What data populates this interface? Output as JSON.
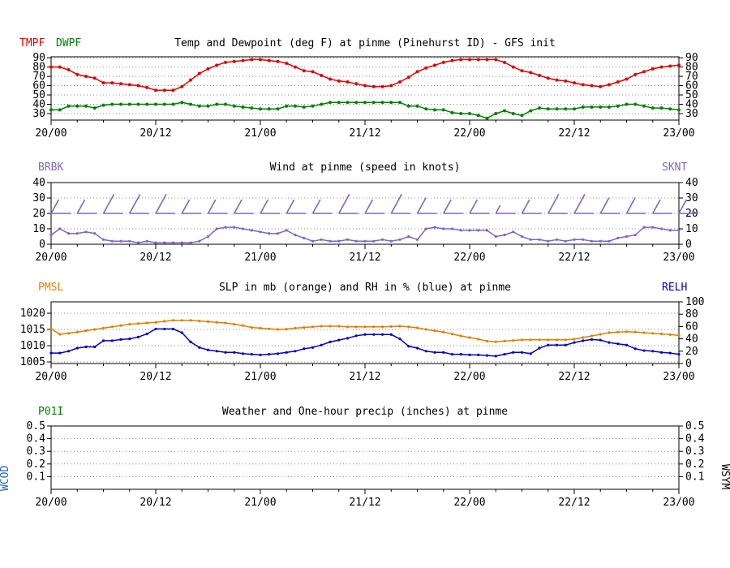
{
  "panels": {
    "temp": {
      "title": "Temp and Dewpoint (deg F) at pinme (Pinehurst ID) - GFS init",
      "left_labels": [
        {
          "text": "TMPF",
          "color": "#e00000"
        },
        {
          "text": "DWPF",
          "color": "#008000"
        }
      ],
      "right_label": "",
      "left_ticks": [
        "90",
        "80",
        "70",
        "60",
        "50",
        "40",
        "30"
      ],
      "right_ticks": [
        "90",
        "80",
        "70",
        "60",
        "50",
        "40",
        "30"
      ],
      "x_ticks": [
        "20/00",
        "20/12",
        "21/00",
        "21/12",
        "22/00",
        "22/12",
        "23/00"
      ]
    },
    "wind": {
      "title": "Wind at  pinme (speed in knots)",
      "left_label": {
        "text": "BRBK",
        "color": "#8064c8"
      },
      "right_label": {
        "text": "SKNT",
        "color": "#8064c8"
      },
      "left_ticks": [
        "40",
        "30",
        "20",
        "10",
        "0"
      ],
      "right_ticks": [
        "40",
        "30",
        "20",
        "10",
        "0"
      ],
      "x_ticks": [
        "20/00",
        "20/12",
        "21/00",
        "21/12",
        "22/00",
        "22/12",
        "23/00"
      ]
    },
    "slp": {
      "title": "SLP in mb (orange) and RH in % (blue) at  pinme",
      "left_label": {
        "text": "PMSL",
        "color": "#e08000"
      },
      "right_label": {
        "text": "RELH",
        "color": "#0000c8"
      },
      "left_ticks": [
        "1020",
        "1015",
        "1010",
        "1005"
      ],
      "right_ticks": [
        "100",
        "80",
        "60",
        "40",
        "20",
        "0"
      ],
      "x_ticks": [
        "20/00",
        "20/12",
        "21/00",
        "21/12",
        "22/00",
        "22/12",
        "23/00"
      ]
    },
    "precip": {
      "title": "Weather and One-hour precip (inches) at  pinme",
      "left_label": {
        "text": "P01I",
        "color": "#008000"
      },
      "side_left": {
        "text": "WCOD",
        "color": "#1e64b4"
      },
      "side_right": {
        "text": "WSYM",
        "color": "#000000"
      },
      "left_ticks": [
        "0.5",
        "0.4",
        "0.3",
        "0.2",
        "0.1"
      ],
      "right_ticks": [
        "0.5",
        "0.4",
        "0.3",
        "0.2",
        "0.1"
      ],
      "x_ticks": [
        "20/00",
        "20/12",
        "21/00",
        "21/12",
        "22/00",
        "22/12",
        "23/00"
      ]
    }
  },
  "colors": {
    "temp": "#e00000",
    "dewpoint": "#008000",
    "wind": "#8064c8",
    "slp": "#e08000",
    "rh": "#0000c8",
    "grid": "#888888"
  },
  "chart_data": [
    {
      "type": "line",
      "title": "Temp and Dewpoint (deg F) at pinme (Pinehurst ID) - GFS init",
      "x_unit": "hours since 20/00",
      "x_range": [
        0,
        72
      ],
      "ylim": [
        23,
        91
      ],
      "grid": "dotted horizontal",
      "series": [
        {
          "name": "TMPF",
          "x": [
            0,
            1,
            2,
            3,
            4,
            5,
            6,
            7,
            8,
            9,
            10,
            11,
            12,
            13,
            14,
            15,
            16,
            17,
            18,
            19,
            20,
            21,
            22,
            23,
            24,
            25,
            26,
            27,
            28,
            29,
            30,
            31,
            32,
            33,
            34,
            35,
            36,
            37,
            38,
            39,
            40,
            41,
            42,
            43,
            44,
            45,
            46,
            47,
            48,
            49,
            50,
            51,
            52,
            53,
            54,
            55,
            56,
            57,
            58,
            59,
            60,
            61,
            62,
            63,
            64,
            65,
            66,
            67,
            68,
            69,
            70,
            71,
            72
          ],
          "values": [
            80,
            80,
            77,
            72,
            70,
            68,
            63,
            63,
            62,
            61,
            60,
            58,
            55,
            55,
            55,
            59,
            66,
            73,
            78,
            82,
            85,
            86,
            87,
            88,
            88,
            87,
            86,
            84,
            80,
            76,
            75,
            71,
            67,
            65,
            64,
            62,
            60,
            59,
            59,
            60,
            64,
            69,
            75,
            79,
            82,
            85,
            87,
            88,
            88,
            88,
            88,
            88,
            85,
            80,
            76,
            74,
            71,
            68,
            66,
            65,
            63,
            61,
            60,
            59,
            61,
            64,
            67,
            72,
            75,
            78,
            80,
            81,
            82
          ]
        },
        {
          "name": "DWPF",
          "x": [
            0,
            1,
            2,
            3,
            4,
            5,
            6,
            7,
            8,
            9,
            10,
            11,
            12,
            13,
            14,
            15,
            16,
            17,
            18,
            19,
            20,
            21,
            22,
            23,
            24,
            25,
            26,
            27,
            28,
            29,
            30,
            31,
            32,
            33,
            34,
            35,
            36,
            37,
            38,
            39,
            40,
            41,
            42,
            43,
            44,
            45,
            46,
            47,
            48,
            49,
            50,
            51,
            52,
            53,
            54,
            55,
            56,
            57,
            58,
            59,
            60,
            61,
            62,
            63,
            64,
            65,
            66,
            67,
            68,
            69,
            70,
            71,
            72
          ],
          "values": [
            34,
            34,
            38,
            38,
            38,
            36,
            39,
            40,
            40,
            40,
            40,
            40,
            40,
            40,
            40,
            42,
            40,
            38,
            38,
            40,
            40,
            38,
            37,
            36,
            35,
            35,
            35,
            38,
            38,
            37,
            38,
            40,
            42,
            42,
            42,
            42,
            42,
            42,
            42,
            42,
            42,
            38,
            38,
            35,
            34,
            34,
            31,
            30,
            30,
            28,
            25,
            30,
            33,
            30,
            28,
            33,
            36,
            35,
            35,
            35,
            35,
            37,
            37,
            37,
            37,
            38,
            40,
            40,
            38,
            36,
            36,
            35,
            34
          ]
        }
      ]
    },
    {
      "type": "line",
      "title": "Wind at  pinme (speed in knots)",
      "x_unit": "hours since 20/00",
      "x_range": [
        0,
        72
      ],
      "ylim": [
        0,
        40
      ],
      "grid": "dotted horizontal",
      "series": [
        {
          "name": "SKNT",
          "x": [
            0,
            1,
            2,
            3,
            4,
            5,
            6,
            7,
            8,
            9,
            10,
            11,
            12,
            13,
            14,
            15,
            16,
            17,
            18,
            19,
            20,
            21,
            22,
            23,
            24,
            25,
            26,
            27,
            28,
            29,
            30,
            31,
            32,
            33,
            34,
            35,
            36,
            37,
            38,
            39,
            40,
            41,
            42,
            43,
            44,
            45,
            46,
            47,
            48,
            49,
            50,
            51,
            52,
            53,
            54,
            55,
            56,
            57,
            58,
            59,
            60,
            61,
            62,
            63,
            64,
            65,
            66,
            67,
            68,
            69,
            70,
            71,
            72
          ],
          "values": [
            6,
            10,
            7,
            7,
            8,
            7,
            3,
            2,
            2,
            2,
            1,
            2,
            1,
            1,
            1,
            1,
            1,
            2,
            5,
            10,
            11,
            11,
            10,
            9,
            8,
            7,
            7,
            9,
            6,
            4,
            2,
            3,
            2,
            2,
            3,
            2,
            2,
            2,
            3,
            2,
            3,
            5,
            3,
            10,
            11,
            10,
            10,
            9,
            9,
            9,
            9,
            5,
            6,
            8,
            5,
            3,
            3,
            2,
            3,
            2,
            3,
            3,
            2,
            2,
            2,
            4,
            5,
            6,
            11,
            11,
            10,
            9,
            9
          ]
        }
      ],
      "barbs_brbk": {
        "x": [
          0,
          3,
          6,
          9,
          12,
          15,
          18,
          21,
          24,
          27,
          30,
          33,
          36,
          39,
          42,
          45,
          48,
          51,
          54,
          57,
          60,
          63,
          66,
          69,
          72
        ],
        "speed": [
          20,
          20,
          35,
          35,
          35,
          20,
          20,
          20,
          20,
          20,
          20,
          35,
          20,
          35,
          25,
          20,
          20,
          5,
          20,
          35,
          35,
          25,
          25,
          20,
          20
        ]
      }
    },
    {
      "type": "line",
      "title": "SLP in mb (orange) and RH in % (blue) at  pinme",
      "x_unit": "hours since 20/00",
      "x_range": [
        0,
        72
      ],
      "ylim_left": [
        1004.5,
        1023.5
      ],
      "ylim_right": [
        0,
        100
      ],
      "grid": "dotted horizontal",
      "series": [
        {
          "name": "PMSL",
          "axis": "left",
          "x": [
            0,
            1,
            2,
            3,
            4,
            5,
            6,
            7,
            8,
            9,
            10,
            11,
            12,
            13,
            14,
            15,
            16,
            17,
            18,
            19,
            20,
            21,
            22,
            23,
            24,
            25,
            26,
            27,
            28,
            29,
            30,
            31,
            32,
            33,
            34,
            35,
            36,
            37,
            38,
            39,
            40,
            41,
            42,
            43,
            44,
            45,
            46,
            47,
            48,
            49,
            50,
            51,
            52,
            53,
            54,
            55,
            56,
            57,
            58,
            59,
            60,
            61,
            62,
            63,
            64,
            65,
            66,
            67,
            68,
            69,
            70,
            71,
            72
          ],
          "values": [
            1015.2,
            1013.5,
            1013.8,
            1014.2,
            1014.6,
            1015.0,
            1015.4,
            1015.8,
            1016.2,
            1016.6,
            1016.8,
            1017.0,
            1017.2,
            1017.5,
            1017.8,
            1017.8,
            1017.8,
            1017.6,
            1017.4,
            1017.2,
            1017.0,
            1016.6,
            1016.2,
            1015.6,
            1015.4,
            1015.2,
            1015.0,
            1015.1,
            1015.4,
            1015.6,
            1015.8,
            1016.0,
            1016.0,
            1016.0,
            1015.8,
            1015.8,
            1015.8,
            1015.8,
            1015.8,
            1015.9,
            1016.0,
            1015.8,
            1015.5,
            1015.0,
            1014.6,
            1014.2,
            1013.6,
            1013.0,
            1012.5,
            1012.0,
            1011.4,
            1011.2,
            1011.4,
            1011.6,
            1011.8,
            1011.8,
            1011.8,
            1011.8,
            1011.8,
            1011.8,
            1012.0,
            1012.5,
            1013.0,
            1013.5,
            1014.0,
            1014.2,
            1014.3,
            1014.2,
            1014.0,
            1013.8,
            1013.6,
            1013.4,
            1013.2
          ]
        },
        {
          "name": "RELH",
          "axis": "right",
          "x": [
            0,
            1,
            2,
            3,
            4,
            5,
            6,
            7,
            8,
            9,
            10,
            11,
            12,
            13,
            14,
            15,
            16,
            17,
            18,
            19,
            20,
            21,
            22,
            23,
            24,
            25,
            26,
            27,
            28,
            29,
            30,
            31,
            32,
            33,
            34,
            35,
            36,
            37,
            38,
            39,
            40,
            41,
            42,
            43,
            44,
            45,
            46,
            47,
            48,
            49,
            50,
            51,
            52,
            53,
            54,
            55,
            56,
            57,
            58,
            59,
            60,
            61,
            62,
            63,
            64,
            65,
            66,
            67,
            68,
            69,
            70,
            71,
            72
          ],
          "values": [
            17,
            17,
            20,
            25,
            27,
            27,
            37,
            37,
            39,
            40,
            43,
            48,
            56,
            56,
            56,
            50,
            35,
            26,
            22,
            20,
            18,
            18,
            16,
            15,
            14,
            15,
            16,
            18,
            20,
            24,
            26,
            30,
            35,
            38,
            41,
            45,
            47,
            47,
            47,
            47,
            40,
            28,
            25,
            20,
            18,
            18,
            15,
            15,
            14,
            14,
            13,
            12,
            15,
            18,
            18,
            16,
            25,
            30,
            30,
            30,
            34,
            37,
            39,
            38,
            34,
            32,
            30,
            24,
            21,
            20,
            18,
            17,
            15
          ]
        }
      ]
    },
    {
      "type": "line",
      "title": "Weather and One-hour precip (inches) at  pinme",
      "x_unit": "hours since 20/00",
      "x_range": [
        0,
        72
      ],
      "ylim": [
        0,
        0.5
      ],
      "grid": "dotted horizontal",
      "series": []
    }
  ]
}
